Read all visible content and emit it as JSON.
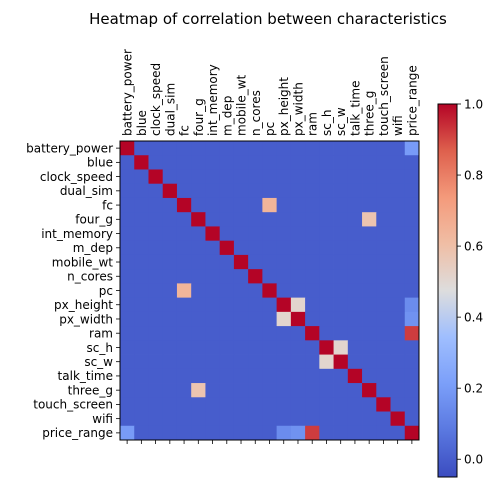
{
  "chart_data": {
    "type": "heatmap",
    "title": "Heatmap of correlation between characteristics",
    "labels": [
      "battery_power",
      "blue",
      "clock_speed",
      "dual_sim",
      "fc",
      "four_g",
      "int_memory",
      "m_dep",
      "mobile_wt",
      "n_cores",
      "pc",
      "px_height",
      "px_width",
      "ram",
      "sc_h",
      "sc_w",
      "talk_time",
      "three_g",
      "touch_screen",
      "wifi",
      "price_range"
    ],
    "strong_pairs": [
      {
        "a": "fc",
        "b": "pc",
        "value": 0.64
      },
      {
        "a": "four_g",
        "b": "three_g",
        "value": 0.58
      },
      {
        "a": "px_height",
        "b": "px_width",
        "value": 0.51
      },
      {
        "a": "sc_h",
        "b": "sc_w",
        "value": 0.51
      },
      {
        "a": "ram",
        "b": "price_range",
        "value": 0.92
      },
      {
        "a": "battery_power",
        "b": "price_range",
        "value": 0.2
      },
      {
        "a": "px_height",
        "b": "price_range",
        "value": 0.15
      },
      {
        "a": "px_width",
        "b": "price_range",
        "value": 0.17
      }
    ],
    "background_value": 0.0,
    "colorbar": {
      "min": -0.05,
      "max": 1.0,
      "ticks": [
        "0.0",
        "0.2",
        "0.4",
        "0.6",
        "0.8",
        "1.0"
      ],
      "colormap": "coolwarm"
    },
    "x_tick_position": "top",
    "grid": false,
    "legend": "colorbar-right"
  }
}
